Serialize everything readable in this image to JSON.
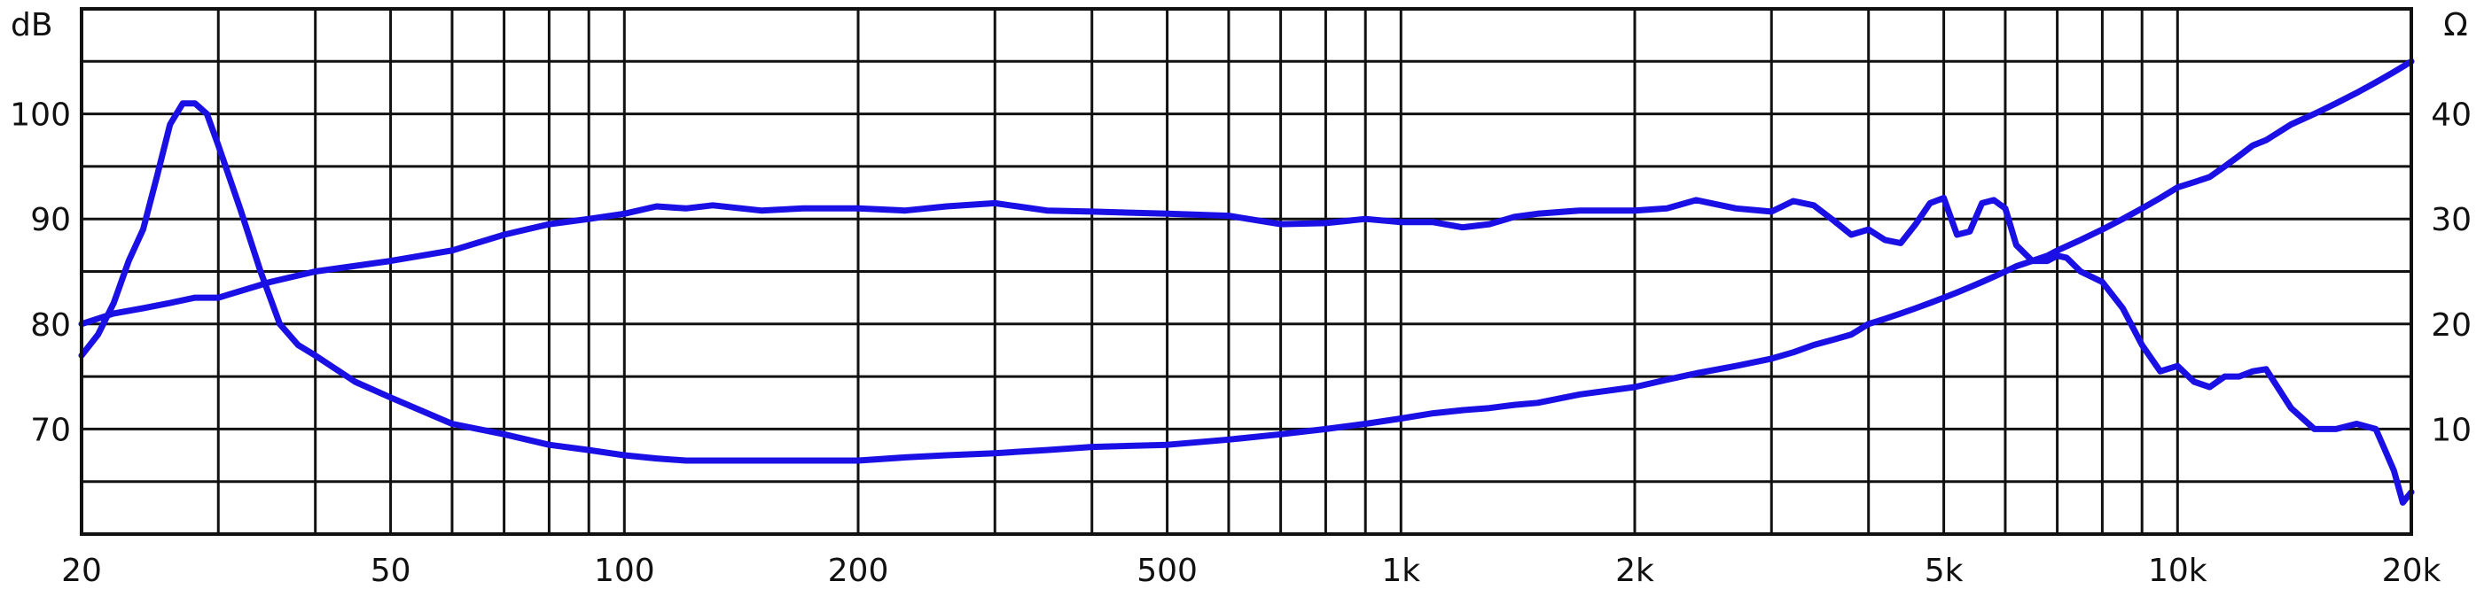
{
  "chart_data": {
    "type": "line",
    "x_scale": "log",
    "xlim": [
      20,
      20000
    ],
    "x_ticks": [
      {
        "value": 20,
        "label": "20"
      },
      {
        "value": 50,
        "label": "50"
      },
      {
        "value": 100,
        "label": "100"
      },
      {
        "value": 200,
        "label": "200"
      },
      {
        "value": 500,
        "label": "500"
      },
      {
        "value": 1000,
        "label": "1k"
      },
      {
        "value": 2000,
        "label": "2k"
      },
      {
        "value": 5000,
        "label": "5k"
      },
      {
        "value": 10000,
        "label": "10k"
      },
      {
        "value": 20000,
        "label": "20k"
      }
    ],
    "y_left": {
      "unit": "dB",
      "range": [
        60,
        110
      ],
      "ticks": [
        70,
        80,
        90,
        100
      ],
      "tick_labels": [
        "70",
        "80",
        "90",
        "100"
      ]
    },
    "y_right": {
      "unit": "Ω",
      "range": [
        0,
        50
      ],
      "ticks": [
        10,
        20,
        30,
        40
      ],
      "tick_labels": [
        "10",
        "20",
        "30",
        "40"
      ]
    },
    "grid": true,
    "colors": {
      "curve": "#1a10e6",
      "grid": "#111111",
      "background": "#ffffff"
    },
    "series": [
      {
        "axis": "left",
        "x": [
          20,
          21,
          22,
          23,
          24,
          25,
          26,
          27,
          28,
          29,
          30,
          32,
          34,
          36,
          38,
          40,
          45,
          50,
          60,
          70,
          80,
          90,
          100,
          110,
          120,
          130,
          140,
          150,
          170,
          200,
          230,
          260,
          300,
          350,
          400,
          500,
          600,
          700,
          800,
          900,
          1000,
          1100,
          1200,
          1300,
          1400,
          1500,
          1700,
          2000,
          2200,
          2400,
          2700,
          3000,
          3200,
          3400,
          3600,
          3800,
          4000,
          4200,
          4400,
          4600,
          4800,
          5000,
          5200,
          5400,
          5600,
          5800,
          6000,
          6200,
          6500,
          6800,
          7000,
          7500,
          8000,
          8500,
          9000,
          9500,
          10000,
          10500,
          11000,
          11500,
          12000,
          12500,
          13000,
          14000,
          15000,
          16000,
          17000,
          18000,
          18500,
          19000,
          19500,
          20000
        ],
        "y": [
          77,
          79,
          82,
          86,
          89,
          94,
          99,
          101,
          101,
          100,
          97,
          91,
          85,
          80,
          78,
          77,
          74.5,
          73,
          70.5,
          69.5,
          68.5,
          68,
          67.5,
          67.2,
          67,
          67,
          67,
          67,
          67,
          67,
          67.3,
          67.5,
          67.7,
          68,
          68.3,
          68.5,
          69,
          69.5,
          70,
          70.5,
          71,
          71.5,
          71.8,
          72,
          72.3,
          72.5,
          73.3,
          74,
          74.7,
          75.3,
          76,
          76.7,
          77.3,
          78,
          78.5,
          79,
          80,
          80.5,
          81,
          81.5,
          82,
          82.5,
          83,
          83.5,
          84,
          84.5,
          85,
          85.5,
          86,
          86.5,
          87,
          88,
          89,
          90,
          91,
          92,
          93,
          93.5,
          94,
          95,
          96,
          97,
          97.5,
          99,
          100,
          101,
          102,
          103,
          103.5,
          104,
          104.5,
          105
        ]
      },
      {
        "axis": "left",
        "x": [
          20,
          22,
          24,
          26,
          28,
          30,
          35,
          40,
          50,
          60,
          70,
          80,
          90,
          100,
          110,
          120,
          130,
          150,
          170,
          200,
          230,
          260,
          300,
          350,
          400,
          500,
          600,
          700,
          800,
          900,
          1000,
          1100,
          1200,
          1300,
          1400,
          1500,
          1700,
          2000,
          2200,
          2400,
          2700,
          3000,
          3200,
          3400,
          3600,
          3800,
          4000,
          4200,
          4400,
          4600,
          4800,
          5000,
          5200,
          5400,
          5600,
          5800,
          6000,
          6200,
          6500,
          6800,
          7000,
          7200,
          7500,
          8000,
          8500,
          9000,
          9500,
          10000,
          10500,
          11000,
          11500,
          12000,
          12500,
          13000,
          14000,
          15000,
          16000,
          17000,
          18000,
          18500,
          19000,
          19500,
          20000
        ],
        "y": [
          80,
          81,
          81.5,
          82,
          82.5,
          82.5,
          84,
          85,
          86,
          87,
          88.5,
          89.5,
          90,
          90.5,
          91.2,
          91,
          91.3,
          90.8,
          91,
          91,
          90.8,
          91.2,
          91.5,
          90.8,
          90.7,
          90.5,
          90.3,
          89.5,
          89.6,
          90,
          89.7,
          89.7,
          89.2,
          89.5,
          90.2,
          90.5,
          90.8,
          90.8,
          91,
          91.8,
          91,
          90.7,
          91.7,
          91.3,
          89.9,
          88.5,
          89,
          88,
          87.7,
          89.5,
          91.5,
          92,
          88.5,
          88.8,
          91.5,
          91.8,
          91,
          87.5,
          86,
          86,
          86.5,
          86.3,
          85,
          84,
          81.5,
          78,
          75.5,
          76,
          74.5,
          74,
          75,
          75,
          75.5,
          75.7,
          72,
          70,
          70,
          70.5,
          70,
          68,
          66,
          63,
          64
        ]
      }
    ]
  }
}
